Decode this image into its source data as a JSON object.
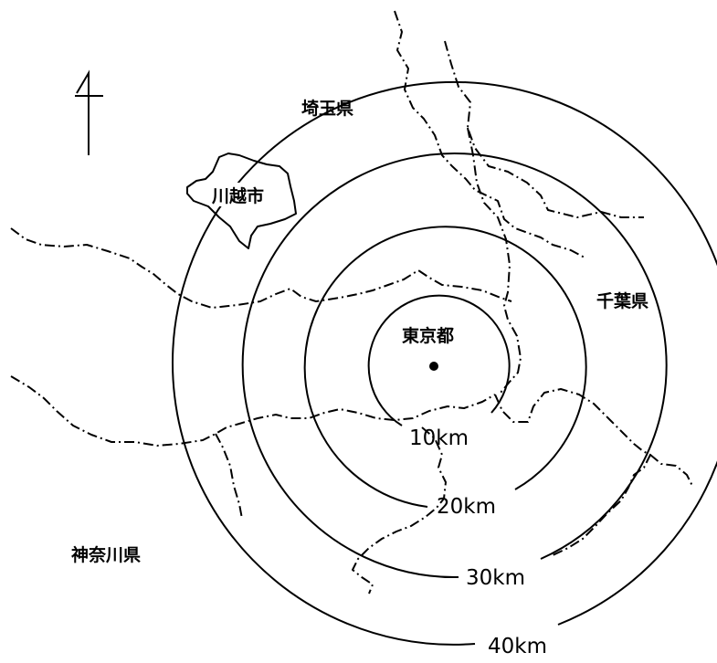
{
  "map": {
    "labels": {
      "saitama": "埼玉県",
      "kawagoe": "川越市",
      "chiba": "千葉県",
      "tokyo": "東京都",
      "kanagawa": "神奈川県"
    },
    "rings": [
      {
        "radius_km": 10,
        "label": "10km"
      },
      {
        "radius_km": 20,
        "label": "20km"
      },
      {
        "radius_km": 30,
        "label": "30km"
      },
      {
        "radius_km": 40,
        "label": "40km"
      }
    ],
    "north_arrow_icon": "north-arrow-icon",
    "center_marker_icon": "center-dot-icon",
    "colors": {
      "ink": "#000000",
      "background": "#ffffff"
    }
  }
}
